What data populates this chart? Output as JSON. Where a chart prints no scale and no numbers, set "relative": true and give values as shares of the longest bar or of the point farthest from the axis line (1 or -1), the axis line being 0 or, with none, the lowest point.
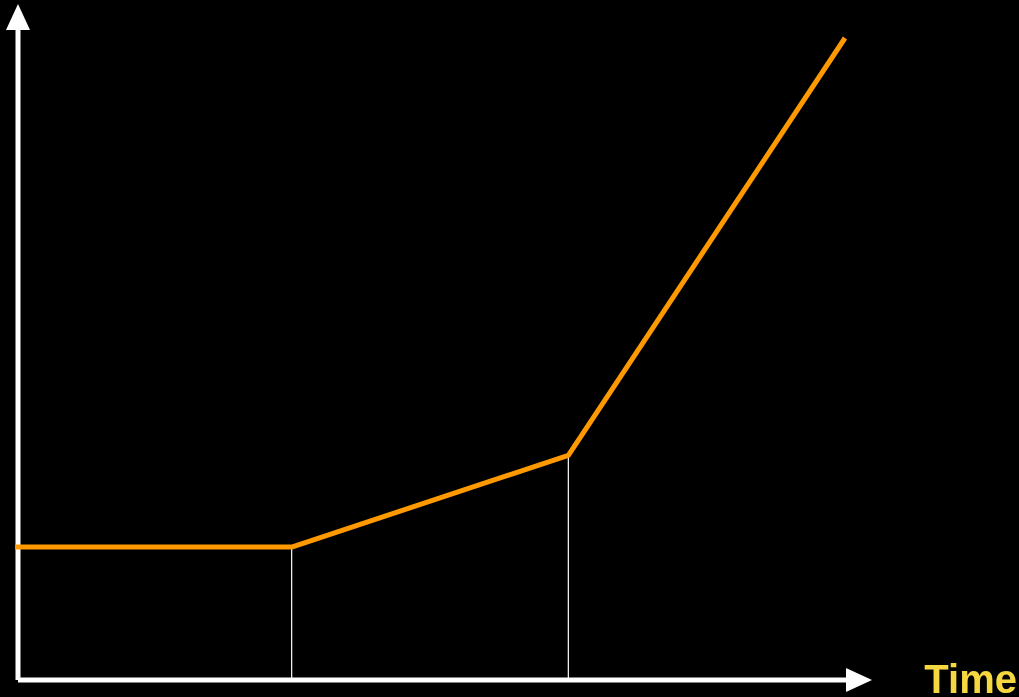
{
  "chart_data": {
    "type": "line",
    "relative": true,
    "xlabel": "Time",
    "categories": [
      null,
      null,
      null,
      null
    ],
    "series": [
      {
        "color": "#ff9900",
        "values": [
          0.207,
          0.207,
          0.35,
          1
        ]
      }
    ],
    "marker": "none",
    "line_style": "solid"
  }
}
